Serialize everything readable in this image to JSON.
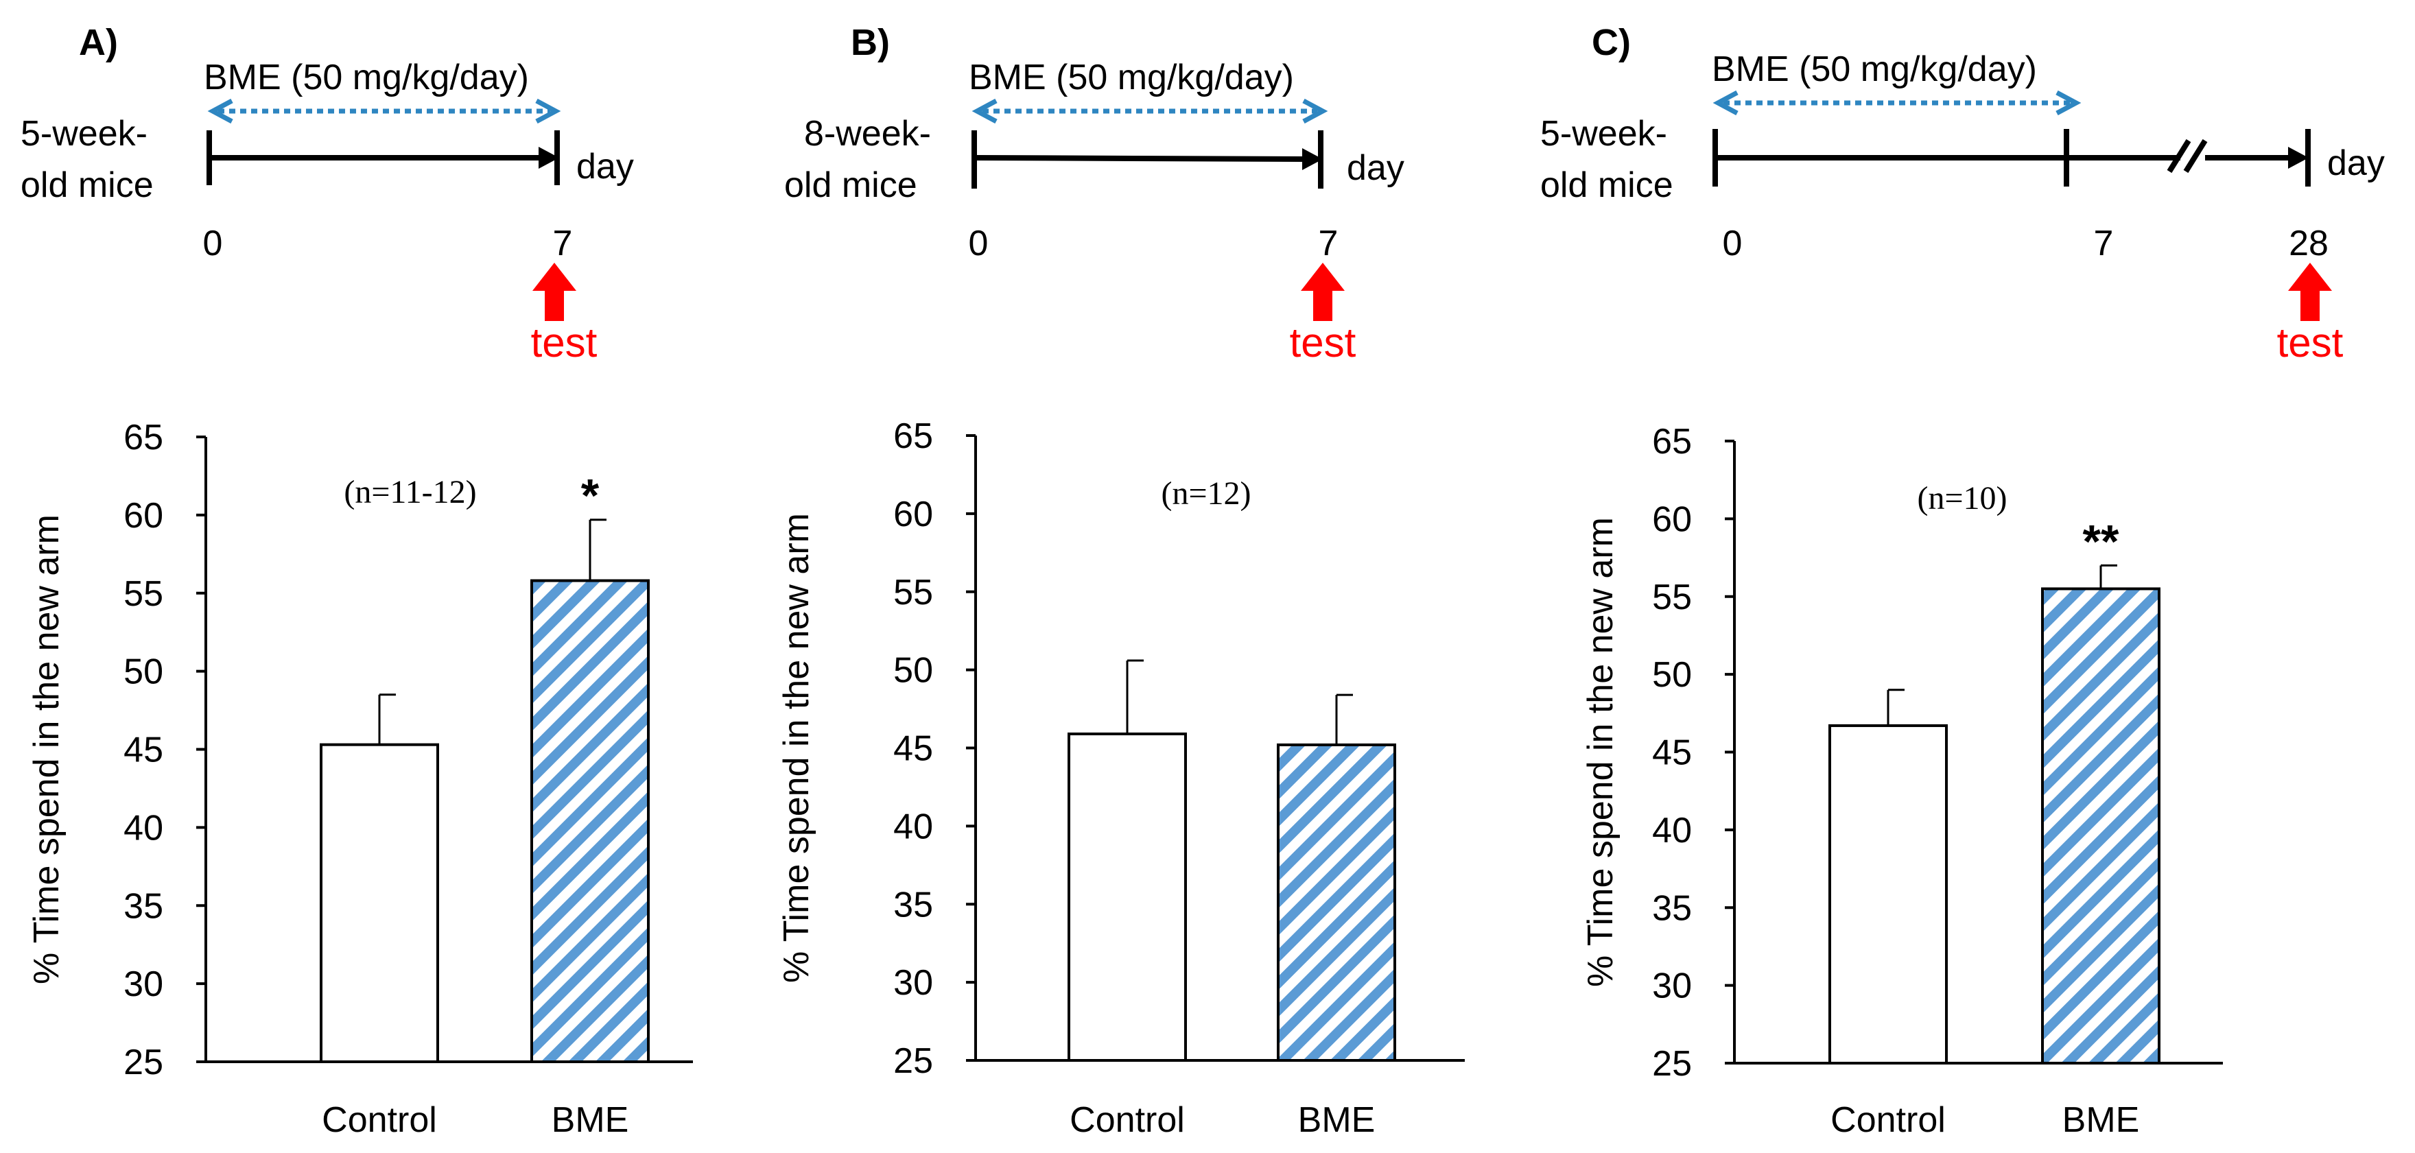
{
  "colors": {
    "ink": "#000000",
    "dose_arrow": "#2E86C1",
    "test_arrow": "#FF0000",
    "hatch_stripe": "#5B9BD5",
    "control_fill": "#FFFFFF"
  },
  "timelines": [
    {
      "panel_label": "A)",
      "dose_label": "BME (50 mg/kg/day)",
      "mice_line1": "5-week-",
      "mice_line2": "old mice",
      "day_label": "day",
      "ticks": [
        "0",
        "7"
      ],
      "test_label": "test"
    },
    {
      "panel_label": "B)",
      "dose_label": "BME (50 mg/kg/day)",
      "mice_line1": "8-week-",
      "mice_line2": "old mice",
      "day_label": "day",
      "ticks": [
        "0",
        "7"
      ],
      "test_label": "test"
    },
    {
      "panel_label": "C)",
      "dose_label": "BME (50 mg/kg/day)",
      "mice_line1": "5-week-",
      "mice_line2": "old mice",
      "day_label": "day",
      "ticks": [
        "0",
        "7",
        "28"
      ],
      "test_label": "test"
    }
  ],
  "chart_data": [
    {
      "type": "bar",
      "panel": "A",
      "categories": [
        "Control",
        "BME"
      ],
      "values": [
        45.3,
        55.8
      ],
      "errors": [
        3.2,
        3.9
      ],
      "ylabel": "% Time spend in the new arm",
      "ylim": [
        25,
        65
      ],
      "yticks": [
        "25",
        "30",
        "35",
        "40",
        "45",
        "50",
        "55",
        "60",
        "65"
      ],
      "n_label": "(n=11-12)",
      "significance": [
        "",
        "*"
      ]
    },
    {
      "type": "bar",
      "panel": "B",
      "categories": [
        "Control",
        "BME"
      ],
      "values": [
        45.9,
        45.2
      ],
      "errors": [
        4.7,
        3.2
      ],
      "ylabel": "% Time spend in the new arm",
      "ylim": [
        25,
        65
      ],
      "yticks": [
        "25",
        "30",
        "35",
        "40",
        "45",
        "50",
        "55",
        "60",
        "65"
      ],
      "n_label": "(n=12)",
      "significance": [
        "",
        ""
      ]
    },
    {
      "type": "bar",
      "panel": "C",
      "categories": [
        "Control",
        "BME"
      ],
      "values": [
        46.7,
        55.5
      ],
      "errors": [
        2.3,
        1.5
      ],
      "ylabel": "% Time spend in the new arm",
      "ylim": [
        25,
        65
      ],
      "yticks": [
        "25",
        "30",
        "35",
        "40",
        "45",
        "50",
        "55",
        "60",
        "65"
      ],
      "n_label": "(n=10)",
      "significance": [
        "",
        "**"
      ]
    }
  ]
}
